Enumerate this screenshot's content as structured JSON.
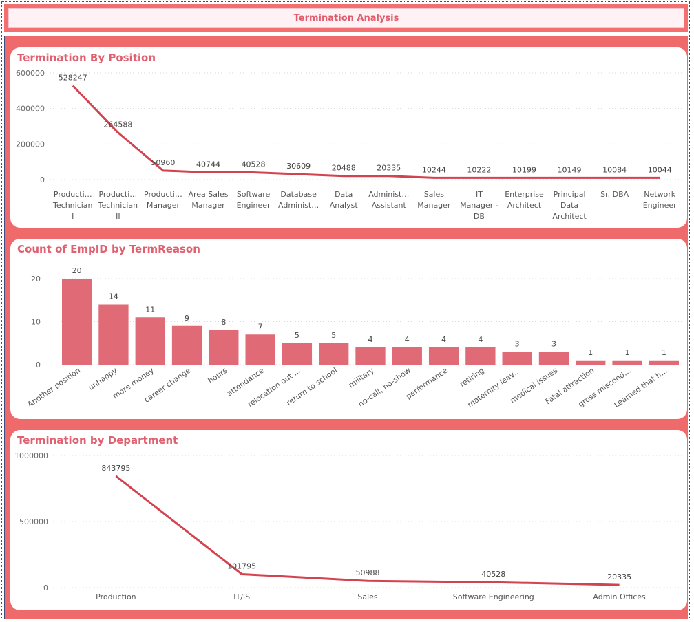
{
  "page": {
    "title": "Termination Analysis"
  },
  "colors": {
    "accent": "#e06070",
    "line": "#d5424f",
    "bar": "#e06a76",
    "background": "#ef6b6b"
  },
  "chart_data": [
    {
      "type": "line",
      "title": "Termination By Position",
      "categories": [
        [
          "Producti…",
          "Technician",
          "I"
        ],
        [
          "Producti…",
          "Technician",
          "II"
        ],
        [
          "Producti…",
          "Manager"
        ],
        [
          "Area Sales",
          "Manager"
        ],
        [
          "Software",
          "Engineer"
        ],
        [
          "Database",
          "Administ…"
        ],
        [
          "Data",
          "Analyst"
        ],
        [
          "Administ…",
          "Assistant"
        ],
        [
          "Sales",
          "Manager"
        ],
        [
          "IT",
          "Manager -",
          "DB"
        ],
        [
          "Enterprise",
          "Architect"
        ],
        [
          "Principal",
          "Data",
          "Architect"
        ],
        [
          "Sr. DBA"
        ],
        [
          "Network",
          "Engineer"
        ]
      ],
      "values": [
        528247,
        264588,
        50960,
        40744,
        40528,
        30609,
        20488,
        20335,
        10244,
        10222,
        10199,
        10149,
        10084,
        10044
      ],
      "yticks": [
        0,
        200000,
        400000,
        600000
      ],
      "ylim": [
        0,
        600000
      ],
      "grid": true
    },
    {
      "type": "bar",
      "title": "Count of EmpID by TermReason",
      "categories": [
        "Another position",
        "unhappy",
        "more money",
        "career change",
        "hours",
        "attendance",
        "relocation out …",
        "return to school",
        "military",
        "no-call, no-show",
        "performance",
        "retiring",
        "maternity leav…",
        "medical issues",
        "Fatal attraction",
        "gross miscond…",
        "Learned that h…"
      ],
      "values": [
        20,
        14,
        11,
        9,
        8,
        7,
        5,
        5,
        4,
        4,
        4,
        4,
        3,
        3,
        1,
        1,
        1
      ],
      "yticks": [
        0,
        10,
        20
      ],
      "ylim": [
        0,
        20
      ],
      "grid": true
    },
    {
      "type": "line",
      "title": "Termination by Department",
      "categories": [
        [
          "Production"
        ],
        [
          "IT/IS"
        ],
        [
          "Sales"
        ],
        [
          "Software Engineering"
        ],
        [
          "Admin Offices"
        ]
      ],
      "values": [
        843795,
        101795,
        50988,
        40528,
        20335
      ],
      "yticks": [
        0,
        500000,
        1000000
      ],
      "ylim": [
        0,
        1000000
      ],
      "grid": true
    }
  ]
}
